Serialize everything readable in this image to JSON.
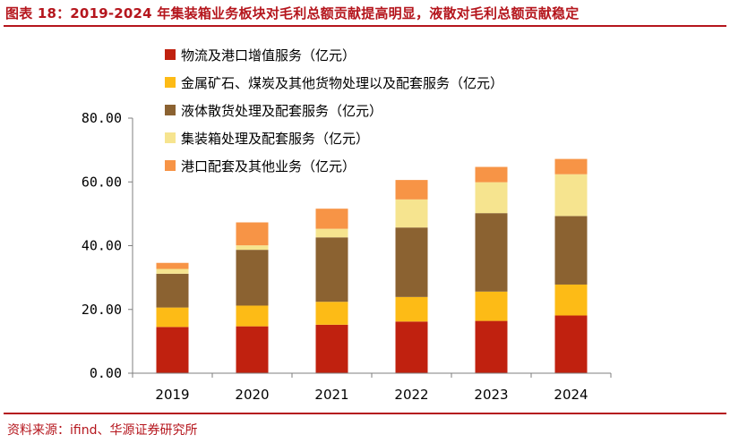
{
  "header": {
    "title": "图表 18：2019-2024 年集装箱业务板块对毛利总额贡献提高明显，液散对毛利总额贡献稳定"
  },
  "footer": {
    "source": "资料来源：ifind、华源证券研究所"
  },
  "colors": {
    "accent": "#b5161d",
    "axis": "#7f7f7f"
  },
  "chart_data": {
    "type": "bar",
    "stacked": true,
    "title": "",
    "xlabel": "",
    "ylabel": "",
    "categories": [
      "2019",
      "2020",
      "2021",
      "2022",
      "2023",
      "2024"
    ],
    "ylim": [
      0,
      80
    ],
    "yticks": [
      "0.00",
      "20.00",
      "40.00",
      "60.00",
      "80.00"
    ],
    "legend_position": "top",
    "series": [
      {
        "name": "物流及港口增值服务（亿元）",
        "color": "#c0210f",
        "values": [
          14.5,
          14.7,
          15.2,
          16.2,
          16.4,
          18.1
        ]
      },
      {
        "name": "金属矿石、煤炭及其他货物处理以及配套服务（亿元）",
        "color": "#fdbb16",
        "values": [
          6.1,
          6.5,
          7.2,
          7.7,
          9.2,
          9.7
        ]
      },
      {
        "name": "液体散货处理及配套服务（亿元）",
        "color": "#8b6231",
        "values": [
          10.6,
          17.5,
          20.2,
          21.8,
          24.6,
          21.5
        ]
      },
      {
        "name": "集装箱处理及配套服务（亿元）",
        "color": "#f6e48f",
        "values": [
          1.5,
          1.4,
          2.7,
          8.8,
          9.7,
          13.1
        ]
      },
      {
        "name": "港口配套及其他业务（亿元）",
        "color": "#f79446",
        "values": [
          1.9,
          7.2,
          6.3,
          6.1,
          4.8,
          4.8
        ]
      }
    ]
  }
}
